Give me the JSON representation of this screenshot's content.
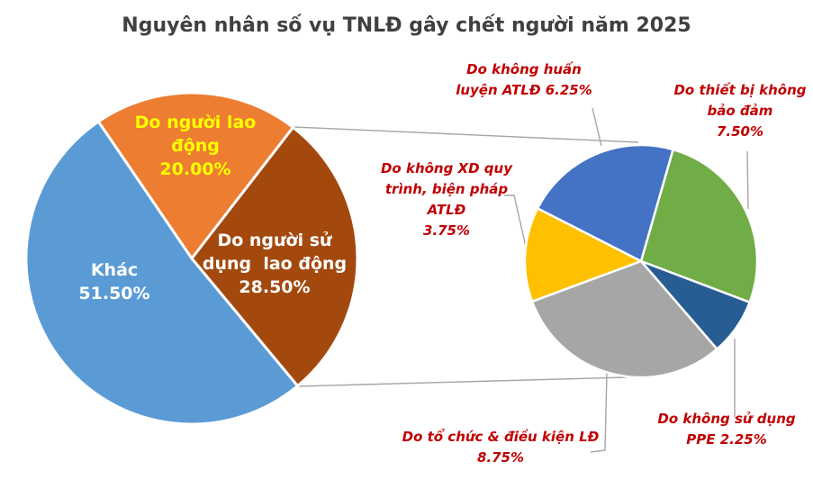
{
  "title": "Nguyên nhân số vụ TNLĐ gây chết người năm 2025",
  "title_color": "#404040",
  "chart_data": {
    "type": "pie",
    "subtype": "pie-of-pie",
    "title": "Nguyên nhân số vụ TNLĐ gây chết người năm 2025",
    "unit": "%",
    "legend": "none",
    "callout_text_color": "#C00000",
    "connector_line_color": "#A6A6A6",
    "main_pie": {
      "start_angle_deg": -34.3,
      "slices": [
        {
          "id": "nguoi-lao-dong",
          "name": "Do người lao động",
          "value": 20.0,
          "color": "#ED7D31",
          "label_color": "#FFFF00"
        },
        {
          "id": "nguoi-su-dung-lao-dong",
          "name": "Do người sử dụng lao động",
          "value": 28.5,
          "color": "#A3490E",
          "label_color": "#FFFFFF"
        },
        {
          "id": "khac",
          "name": "Khác",
          "value": 51.5,
          "color": "#5B9BD5",
          "label_color": "#FFFFFF"
        }
      ]
    },
    "secondary_pie": {
      "parent_slice": "Do người sử dụng lao động",
      "start_angle_deg": 16,
      "slices": [
        {
          "id": "thiet-bi",
          "name": "Do thiết bị không bảo đảm",
          "value": 7.5,
          "color": "#70AD47"
        },
        {
          "id": "ppe",
          "name": "Do không sử dụng PPE",
          "value": 2.25,
          "color": "#275D92"
        },
        {
          "id": "to-chuc",
          "name": "Do tổ chức & điều kiện LĐ",
          "value": 8.75,
          "color": "#A6A6A6"
        },
        {
          "id": "quy-trinh",
          "name": "Do không XD quy trình, biện pháp ATLĐ",
          "value": 3.75,
          "color": "#FFC000"
        },
        {
          "id": "huan-luyen",
          "name": "Do không huấn luyện ATLĐ",
          "value": 6.25,
          "color": "#4472C4"
        }
      ]
    }
  },
  "labels": {
    "main_nguoi_lao_dong": "Do người lao\nđộng\n20.00%",
    "main_nguoi_su_dung": "Do người sử\ndụng  lao động\n28.50%",
    "main_khac": "Khác\n51.50%",
    "callout_huan_luyen": "Do không huấn\nluyện ATLĐ 6.25%",
    "callout_thiet_bi": "Do thiết bị không\nbảo đảm\n7.50%",
    "callout_quy_trinh": "Do không XD quy\ntrình, biện pháp\nATLĐ\n3.75%",
    "callout_to_chuc": "Do tổ chức & điều kiện LĐ\n8.75%",
    "callout_ppe": "Do không sử dụng\nPPE 2.25%"
  }
}
